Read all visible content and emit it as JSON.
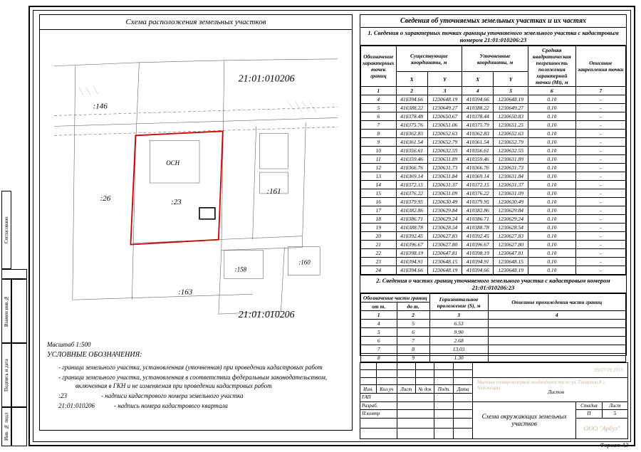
{
  "leftTitle": "Схема расположения земельных участков",
  "rightTitle": "Сведения об уточняемых земельных участках и их частях",
  "section1": "1. Сведения о характерных точках границы уточняемого земельного участка с кадастровым номером 21:01:010206:23",
  "coordHeaders": {
    "c1": "Обозначение характерных точек границ",
    "c2": "Существующие координаты, м",
    "c3": "Уточненные координаты, м",
    "c4": "Средняя квадратическая погрешность положения характерной точки (Мt), м",
    "c5": "Описание закрепления точки",
    "x": "X",
    "y": "Y",
    "n1": "1",
    "n2": "2",
    "n3": "3",
    "n4": "4",
    "n5": "5",
    "n6": "6",
    "n7": "7"
  },
  "coords": [
    [
      "4",
      "410394.66",
      "1230648.19",
      "410394.66",
      "1230648.19",
      "0.10",
      "-"
    ],
    [
      "5",
      "410388.22",
      "1230649.27",
      "410388.22",
      "1230649.27",
      "0.10",
      "-"
    ],
    [
      "6",
      "410378.48",
      "1230650.67",
      "410378.44",
      "1230650.83",
      "0.10",
      "-"
    ],
    [
      "7",
      "410375.76",
      "1230651.06",
      "410375.79",
      "1230651.25",
      "0.10",
      "-"
    ],
    [
      "8",
      "410362.83",
      "1230652.63",
      "410362.83",
      "1230652.63",
      "0.10",
      "-"
    ],
    [
      "9",
      "410361.54",
      "1230652.79",
      "410361.54",
      "1230652.79",
      "0.10",
      "-"
    ],
    [
      "10",
      "410356.61",
      "1230632.55",
      "410356.61",
      "1230632.55",
      "0.10",
      "-"
    ],
    [
      "11",
      "410359.46",
      "1230631.89",
      "410359.46",
      "1230631.89",
      "0.10",
      "-"
    ],
    [
      "12",
      "410366.76",
      "1230631.73",
      "410366.76",
      "1230631.73",
      "0.10",
      "-"
    ],
    [
      "13",
      "410369.14",
      "1230631.84",
      "410369.14",
      "1230631.84",
      "0.10",
      "-"
    ],
    [
      "14",
      "410372.15",
      "1230631.37",
      "410372.15",
      "1230631.37",
      "0.10",
      "-"
    ],
    [
      "15",
      "410376.22",
      "1230631.09",
      "410376.22",
      "1230631.09",
      "0.10",
      "-"
    ],
    [
      "16",
      "410379.95",
      "1230630.49",
      "410379.95",
      "1230630.49",
      "0.10",
      "-"
    ],
    [
      "17",
      "410382.86",
      "1230629.84",
      "410382.86",
      "1230629.84",
      "0.10",
      "-"
    ],
    [
      "18",
      "410386.71",
      "1230629.24",
      "410386.71",
      "1230629.24",
      "0.10",
      "-"
    ],
    [
      "19",
      "410388.78",
      "1230628.54",
      "410388.78",
      "1230628.54",
      "0.10",
      "-"
    ],
    [
      "20",
      "410392.45",
      "1230627.83",
      "410392.45",
      "1230627.83",
      "0.10",
      "-"
    ],
    [
      "21",
      "410396.67",
      "1230627.80",
      "410396.67",
      "1230627.80",
      "0.10",
      "-"
    ],
    [
      "22",
      "410398.19",
      "1230647.81",
      "410398.19",
      "1230647.81",
      "0.10",
      "-"
    ],
    [
      "23",
      "410394.91",
      "1230648.15",
      "410394.91",
      "1230648.15",
      "0.10",
      "-"
    ],
    [
      "24",
      "410394.66",
      "1230648.19",
      "410394.66",
      "1230648.19",
      "0.10",
      "-"
    ]
  ],
  "section2": "2. Сведения о частях границ уточняемого земельного участка с кадастровым номером 21:01:010206:23",
  "partHeaders": {
    "c1": "Обозначение части границ",
    "c2": "Горизонтальное проложение (S), м",
    "c3": "Описание прохождения части границ",
    "from": "от т.",
    "to": "до т.",
    "n1": "1",
    "n2": "2",
    "n3": "3",
    "n4": "4"
  },
  "parts": [
    [
      "4",
      "5",
      "6.53",
      ""
    ],
    [
      "5",
      "6",
      "9.90",
      ""
    ],
    [
      "6",
      "7",
      "2.68",
      ""
    ],
    [
      "7",
      "8",
      "13.03",
      ""
    ],
    [
      "8",
      "9",
      "1.30",
      ""
    ]
  ],
  "map": {
    "quarter": "21:01:010206",
    "main_color": "#cc0000",
    "line_color": "#555",
    "labels": {
      "l146": ":146",
      "l26": ":26",
      "l23": ":23",
      "l161": ":161",
      "l158": ":158",
      "l163": ":163",
      "l160": ":160",
      "ocn": "ОСН"
    }
  },
  "legend": {
    "scale": "Масштаб 1:500",
    "title": "УСЛОВНЫЕ ОБОЗНАЧЕНИЯ:",
    "i1": "- граница земельного участка, установленная (уточненная) при проведении кадастровых работ",
    "i2": "- граница земельного участка, установленная в соответствии федеральным законодательством, включенная в ГКН и не изменяемая при проведении кадастровых работ",
    "i3": "- надписи кадастрового номера земельного участка",
    "i3lab": ":23",
    "i4": "- надпись номера кадастрового квартала",
    "i4lab": "21:01:010206"
  },
  "stamp": {
    "date": "05/07/19 2015",
    "desc": "Магазин товаров первой необходимости по ул. Гагарина 8 г. Чебоксары",
    "title": "Схема окружающих земельных участков",
    "org": "ООО \"Арбуз\"",
    "stadia": "Стадия",
    "list": "Лист",
    "listov": "Листов",
    "stadiaV": "П",
    "listV": "5",
    "format": "Формат А3",
    "rows": [
      "Изм.",
      "Кол.уч",
      "Лист",
      "№ док",
      "Подп.",
      "Дата"
    ],
    "roles": [
      "ГАП",
      "Разраб.",
      "Н.контр"
    ]
  },
  "sidebar": [
    "Согласовано",
    "Инв. № подл",
    "Подпись и дата",
    "Взамен инв.№"
  ]
}
